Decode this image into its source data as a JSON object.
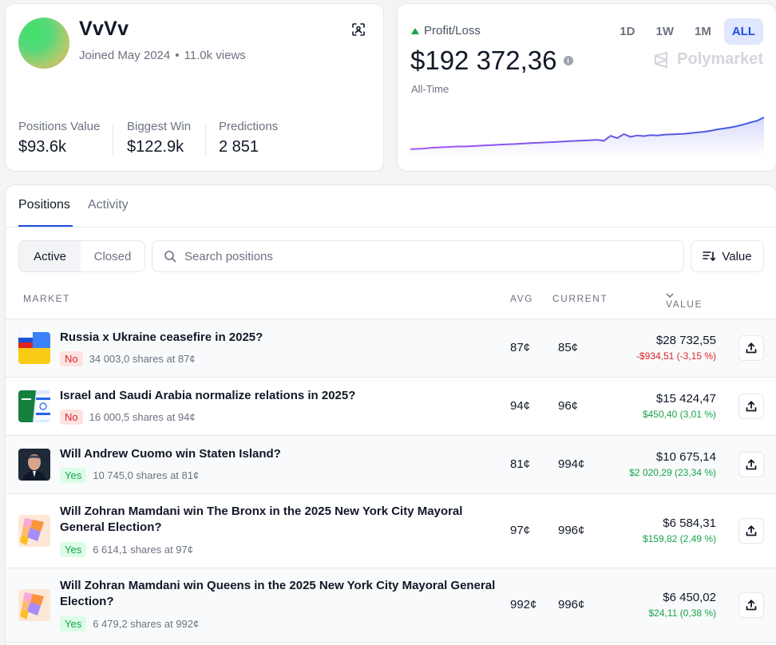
{
  "profile": {
    "username": "VvVv",
    "joined": "Joined May 2024",
    "views": "11.0k views",
    "stats": [
      {
        "label": "Positions Value",
        "value": "$93.6k"
      },
      {
        "label": "Biggest Win",
        "value": "$122.9k"
      },
      {
        "label": "Predictions",
        "value": "2 851"
      }
    ]
  },
  "pnl": {
    "label": "Profit/Loss",
    "value": "$192 372,36",
    "period": "All-Time",
    "ranges": [
      "1D",
      "1W",
      "1M",
      "ALL"
    ],
    "active_range": "ALL",
    "brand": "Polymarket",
    "series": [
      0.05,
      0.06,
      0.07,
      0.09,
      0.1,
      0.11,
      0.12,
      0.13,
      0.13,
      0.14,
      0.15,
      0.16,
      0.17,
      0.18,
      0.19,
      0.2,
      0.21,
      0.22,
      0.23,
      0.24,
      0.25,
      0.26,
      0.27,
      0.28,
      0.29,
      0.3,
      0.31,
      0.32,
      0.33,
      0.3,
      0.45,
      0.38,
      0.5,
      0.42,
      0.46,
      0.44,
      0.47,
      0.46,
      0.48,
      0.49,
      0.5,
      0.51,
      0.53,
      0.55,
      0.57,
      0.6,
      0.64,
      0.67,
      0.7,
      0.74,
      0.79,
      0.85,
      0.9,
      1.0
    ]
  },
  "tabs": {
    "positions": "Positions",
    "activity": "Activity"
  },
  "filters": {
    "active": "Active",
    "closed": "Closed",
    "search_placeholder": "Search positions",
    "sort_label": "Value"
  },
  "table": {
    "headers": {
      "market": "MARKET",
      "avg": "AVG",
      "current": "CURRENT",
      "value": "VALUE"
    },
    "rows": [
      {
        "title": "Russia x Ukraine ceasefire in 2025?",
        "outcome": "No",
        "shares": "34 003,0 shares at 87¢",
        "avg": "87¢",
        "current": "85¢",
        "value": "$28 732,55",
        "pnl": "-$934,51 (-3,15 %)"
      },
      {
        "title": "Israel and Saudi Arabia normalize relations in 2025?",
        "outcome": "No",
        "shares": "16 000,5 shares at 94¢",
        "avg": "94¢",
        "current": "96¢",
        "value": "$15 424,47",
        "pnl": "$450,40 (3,01 %)"
      },
      {
        "title": "Will Andrew Cuomo win Staten Island?",
        "outcome": "Yes",
        "shares": "10 745,0 shares at 81¢",
        "avg": "81¢",
        "current": "994¢",
        "value": "$10 675,14",
        "pnl": "$2 020,29 (23,34 %)"
      },
      {
        "title": "Will Zohran Mamdani win The Bronx in the 2025 New York City Mayoral General Election?",
        "outcome": "Yes",
        "shares": "6 614,1 shares at 97¢",
        "avg": "97¢",
        "current": "996¢",
        "value": "$6 584,31",
        "pnl": "$159,82 (2,49 %)"
      },
      {
        "title": "Will Zohran Mamdani win Queens in the 2025 New York City Mayoral General Election?",
        "outcome": "Yes",
        "shares": "6 479,2 shares at 992¢",
        "avg": "992¢",
        "current": "996¢",
        "value": "$6 450,02",
        "pnl": "$24,11 (0,38 %)"
      }
    ]
  }
}
